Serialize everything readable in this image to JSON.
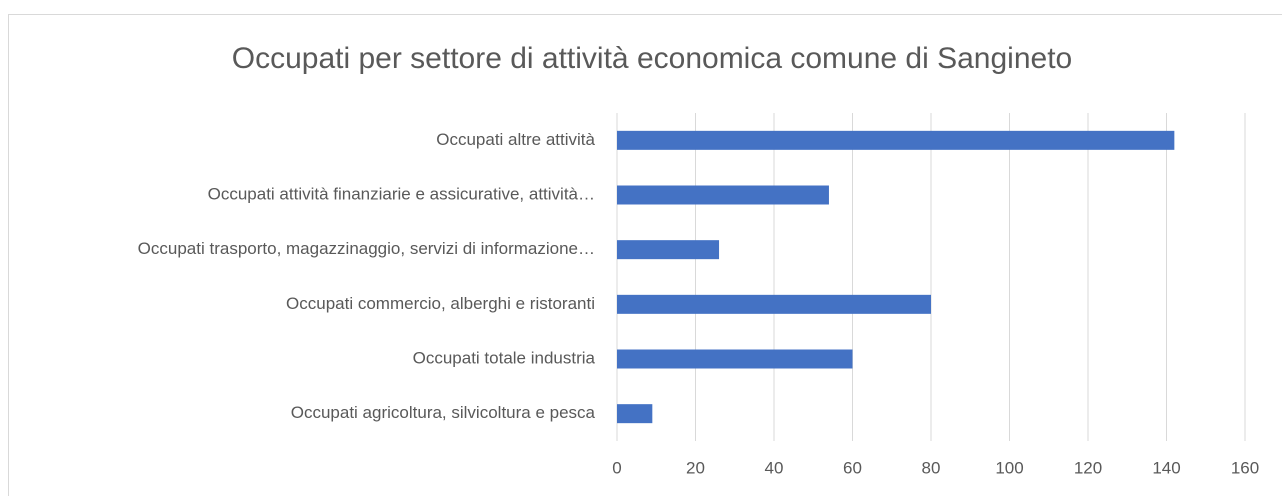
{
  "chart_data": {
    "type": "bar",
    "orientation": "horizontal",
    "title": "Occupati per settore di attività economica comune di Sangineto",
    "categories": [
      "Occupati altre attività",
      "Occupati attività finanziarie e assicurative, attività…",
      "Occupati trasporto, magazzinaggio, servizi di informazione…",
      "Occupati commercio, alberghi e ristoranti",
      "Occupati totale industria",
      "Occupati agricoltura, silvicoltura e pesca"
    ],
    "values": [
      142,
      54,
      26,
      80,
      60,
      9
    ],
    "color": "#4472c4",
    "xlim": [
      0,
      160
    ],
    "xticks": [
      0,
      20,
      40,
      60,
      80,
      100,
      120,
      140,
      160
    ],
    "grid": true
  }
}
